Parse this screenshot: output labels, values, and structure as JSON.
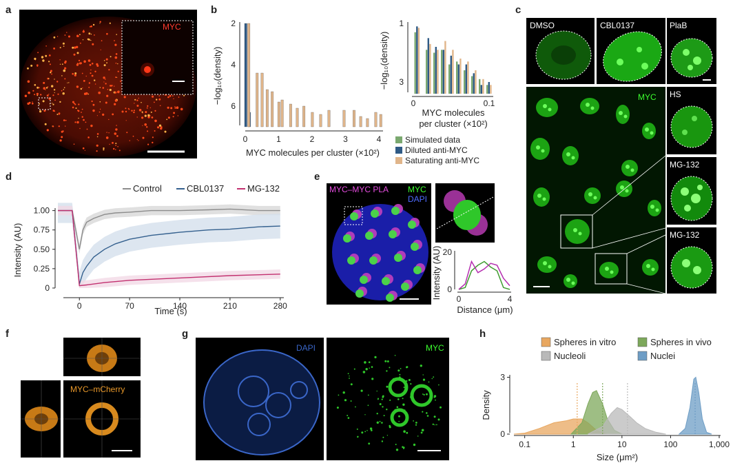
{
  "panels": {
    "a": {
      "letter": "a",
      "inset_label": "MYC"
    },
    "b": {
      "letter": "b"
    },
    "c": {
      "letter": "c",
      "top_labels": [
        "DMSO",
        "CBL0137",
        "PlaB"
      ],
      "big_label": "MYC",
      "side_labels": [
        "HS",
        "MG-132",
        "MG-132"
      ]
    },
    "d": {
      "letter": "d"
    },
    "e": {
      "letter": "e",
      "label_pla": "MYC–MYC PLA",
      "label_myc": "MYC",
      "label_dapi": "DAPI"
    },
    "f": {
      "letter": "f",
      "label": "MYC–mCherry"
    },
    "g": {
      "letter": "g",
      "label_dapi": "DAPI",
      "label_myc": "MYC"
    },
    "h": {
      "letter": "h"
    }
  },
  "chart_data": [
    {
      "id": "b-main",
      "type": "bar",
      "xlabel": "MYC molecules per cluster (×10²)",
      "ylabel": "−log₁₀(density)",
      "x_ticks": [
        "0",
        "1",
        "2",
        "3",
        "4"
      ],
      "y_ticks": [
        "2",
        "4",
        "6"
      ],
      "xlim": [
        0,
        4
      ],
      "ylim": [
        2,
        7
      ],
      "y_inverted": true,
      "series": [
        {
          "name": "Diluted anti-MYC",
          "color": "#2f5a85",
          "points": [
            [
              0.02,
              2.0
            ],
            [
              0.13,
              6.3
            ]
          ]
        },
        {
          "name": "Saturating anti-MYC",
          "color": "#e0b58a",
          "points": [
            [
              0.05,
              2.0
            ],
            [
              0.3,
              4.4
            ],
            [
              0.45,
              4.4
            ],
            [
              0.6,
              5.2
            ],
            [
              0.75,
              5.3
            ],
            [
              0.95,
              5.8
            ],
            [
              1.05,
              5.7
            ],
            [
              1.3,
              5.9
            ],
            [
              1.5,
              6.1
            ],
            [
              1.7,
              6.0
            ],
            [
              1.95,
              6.3
            ],
            [
              2.2,
              6.4
            ],
            [
              2.45,
              6.2
            ],
            [
              2.9,
              6.2
            ],
            [
              3.2,
              6.2
            ],
            [
              3.4,
              6.5
            ],
            [
              3.6,
              6.6
            ],
            [
              3.85,
              6.3
            ],
            [
              4.0,
              6.4
            ]
          ]
        }
      ]
    },
    {
      "id": "b-inset",
      "type": "bar",
      "xlabel": "MYC molecules per cluster (×10²)",
      "ylabel": "−log₁₀(density)",
      "x_ticks": [
        "0",
        "0.1"
      ],
      "y_ticks": [
        "1",
        "3"
      ],
      "xlim": [
        0,
        0.1
      ],
      "ylim": [
        1,
        3.4
      ],
      "y_inverted": true,
      "legend": [
        {
          "name": "Simulated data",
          "color": "#7aa86f"
        },
        {
          "name": "Diluted anti-MYC",
          "color": "#2f5a85"
        },
        {
          "name": "Saturating anti-MYC",
          "color": "#e0b58a"
        }
      ],
      "groups": [
        {
          "x": 0.005,
          "values": [
            1.3,
            1.1,
            1.15
          ]
        },
        {
          "x": 0.02,
          "values": [
            1.9,
            1.5,
            1.7
          ]
        },
        {
          "x": 0.03,
          "values": [
            2.0,
            1.8,
            1.9
          ]
        },
        {
          "x": 0.04,
          "values": [
            1.9,
            1.9,
            1.6
          ]
        },
        {
          "x": 0.05,
          "values": [
            2.4,
            2.1,
            1.9
          ]
        },
        {
          "x": 0.06,
          "values": [
            2.3,
            2.4,
            2.2
          ]
        },
        {
          "x": 0.07,
          "values": [
            2.6,
            2.4,
            2.3
          ]
        },
        {
          "x": 0.08,
          "values": [
            2.8,
            2.7,
            2.6
          ]
        },
        {
          "x": 0.09,
          "values": [
            2.9,
            3.1,
            2.9
          ]
        },
        {
          "x": 0.1,
          "values": [
            3.1,
            3.0,
            3.1
          ]
        }
      ]
    },
    {
      "id": "d",
      "type": "line",
      "xlabel": "Time (s)",
      "ylabel": "Intensity (AU)",
      "x_ticks": [
        "0",
        "70",
        "140",
        "210",
        "280"
      ],
      "y_ticks": [
        "0",
        "0.25",
        "0.50",
        "0.75",
        "1.00"
      ],
      "xlim": [
        -30,
        285
      ],
      "ylim": [
        0,
        1.05
      ],
      "legend_position": "top",
      "series": [
        {
          "name": "Control",
          "color": "#8c8c8c",
          "band": "#d8d8d8",
          "x": [
            -30,
            -10,
            0,
            5,
            10,
            20,
            35,
            50,
            70,
            100,
            140,
            180,
            210,
            250,
            280
          ],
          "y": [
            1.0,
            1.0,
            0.5,
            0.75,
            0.85,
            0.9,
            0.95,
            0.97,
            0.98,
            1.0,
            1.0,
            1.01,
            1.02,
            1.0,
            1.0
          ]
        },
        {
          "name": "CBL0137",
          "color": "#34608e",
          "band": "#d5e0ec",
          "x": [
            -30,
            -10,
            0,
            5,
            10,
            20,
            35,
            50,
            70,
            100,
            140,
            180,
            210,
            250,
            280
          ],
          "y": [
            1.0,
            1.0,
            0.05,
            0.2,
            0.28,
            0.4,
            0.5,
            0.57,
            0.63,
            0.68,
            0.72,
            0.75,
            0.76,
            0.79,
            0.8
          ]
        },
        {
          "name": "MG-132",
          "color": "#c2306f",
          "band": "#f2d9e6",
          "x": [
            -30,
            -10,
            0,
            10,
            35,
            70,
            140,
            210,
            280
          ],
          "y": [
            1.0,
            1.0,
            0.03,
            0.04,
            0.07,
            0.1,
            0.13,
            0.16,
            0.18
          ]
        }
      ]
    },
    {
      "id": "e-profile",
      "type": "line",
      "xlabel": "Distance (μm)",
      "ylabel": "Intensity (AU)",
      "x_ticks": [
        "0",
        "4"
      ],
      "y_ticks": [
        "0",
        "20"
      ],
      "xlim": [
        0,
        4
      ],
      "ylim": [
        0,
        20
      ],
      "series": [
        {
          "name": "MYC",
          "color": "#3f9c2f",
          "x": [
            0,
            0.5,
            1.0,
            1.5,
            2.0,
            2.5,
            3.0,
            3.5,
            4.0
          ],
          "y": [
            0,
            1,
            10,
            13,
            15,
            12,
            10,
            1,
            0
          ]
        },
        {
          "name": "PLA",
          "color": "#b52fb0",
          "x": [
            0,
            0.5,
            1.0,
            1.5,
            2.0,
            2.5,
            3.0,
            3.5,
            4.0
          ],
          "y": [
            0,
            3,
            15,
            9,
            11,
            14,
            13,
            6,
            2
          ]
        }
      ]
    },
    {
      "id": "h",
      "type": "area",
      "xlabel": "Size (μm²)",
      "ylabel": "Density",
      "x_ticks": [
        "0.1",
        "1",
        "10",
        "100",
        "1,000"
      ],
      "y_ticks": [
        "0",
        "3"
      ],
      "x_scale": "log",
      "xlim": [
        0.06,
        1000
      ],
      "ylim": [
        0,
        3.2
      ],
      "legend_position": "top",
      "series": [
        {
          "name": "Spheres in vitro",
          "color": "#e8a760",
          "median": 1.2,
          "x": [
            0.06,
            0.1,
            0.2,
            0.4,
            0.7,
            1.0,
            1.5,
            2,
            3,
            5
          ],
          "y": [
            0,
            0.05,
            0.3,
            0.6,
            0.7,
            0.8,
            0.8,
            0.6,
            0.2,
            0
          ]
        },
        {
          "name": "Spheres in vivo",
          "color": "#7da85b",
          "median": 4,
          "x": [
            0.9,
            1.5,
            2,
            2.5,
            3,
            4,
            5,
            7,
            10
          ],
          "y": [
            0,
            0.6,
            1.6,
            2.2,
            2.3,
            1.6,
            0.8,
            0.2,
            0
          ]
        },
        {
          "name": "Nucleoli",
          "color": "#b9b9b9",
          "median": 13,
          "x": [
            2,
            4,
            6,
            8,
            10,
            15,
            20,
            30,
            50,
            80
          ],
          "y": [
            0,
            0.4,
            1.1,
            1.4,
            1.3,
            0.9,
            0.6,
            0.3,
            0.1,
            0
          ]
        },
        {
          "name": "Nuclei",
          "color": "#6e9dc5",
          "median": 320,
          "x": [
            150,
            200,
            250,
            300,
            330,
            380,
            450,
            550,
            700
          ],
          "y": [
            0,
            0.3,
            1.4,
            2.9,
            3.0,
            2.2,
            0.8,
            0.1,
            0
          ]
        }
      ]
    }
  ]
}
